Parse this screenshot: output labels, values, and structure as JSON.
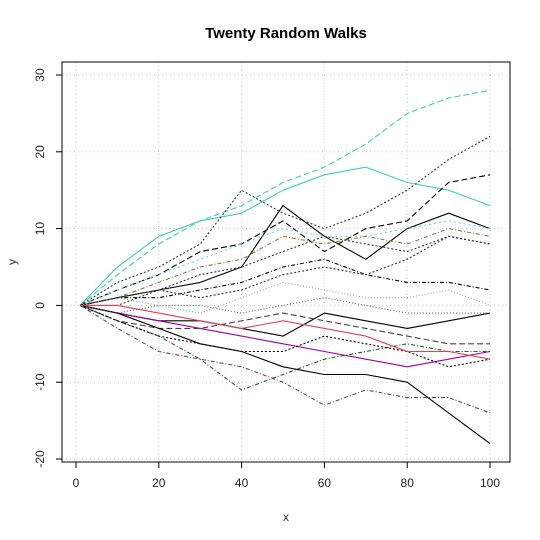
{
  "chart_data": {
    "type": "line",
    "title": "Twenty Random Walks",
    "xlabel": "x",
    "ylabel": "y",
    "xlim": [
      0,
      100
    ],
    "ylim": [
      -20,
      30
    ],
    "xticks": [
      "0",
      "20",
      "40",
      "60",
      "80",
      "100"
    ],
    "yticks": [
      "-20",
      "-10",
      "0",
      "10",
      "20",
      "30"
    ],
    "grid": true,
    "legend": "none",
    "x": [
      1,
      10,
      20,
      30,
      40,
      50,
      60,
      70,
      80,
      90,
      100
    ],
    "series": [
      {
        "color": "#40d0b0",
        "dash": "6 3",
        "values": [
          0,
          4,
          8,
          11,
          13,
          16,
          18,
          21,
          25,
          27,
          28
        ]
      },
      {
        "color": "#40d0b0",
        "dash": "",
        "values": [
          0,
          5,
          9,
          11,
          12,
          15,
          17,
          18,
          16,
          15,
          13
        ]
      },
      {
        "color": "#333333",
        "dash": "2 2",
        "values": [
          0,
          3,
          5,
          8,
          15,
          12,
          10,
          12,
          15,
          19,
          22
        ]
      },
      {
        "color": "#000000",
        "dash": "6 3",
        "values": [
          0,
          2,
          4,
          7,
          8,
          11,
          7,
          10,
          11,
          16,
          17
        ]
      },
      {
        "color": "#000000",
        "dash": "",
        "values": [
          0,
          1,
          2,
          3,
          5,
          13,
          9,
          6,
          10,
          12,
          10
        ]
      },
      {
        "color": "#60e0c0",
        "dash": "2 3",
        "values": [
          0,
          2,
          4,
          6,
          8,
          10,
          9,
          9,
          10,
          11,
          10
        ]
      },
      {
        "color": "#808040",
        "dash": "4 2 1 2",
        "values": [
          0,
          1,
          3,
          5,
          6,
          9,
          8,
          9,
          8,
          10,
          9
        ]
      },
      {
        "color": "#204020",
        "dash": "2 2",
        "values": [
          0,
          0,
          2,
          4,
          5,
          7,
          9,
          8,
          7,
          9,
          8
        ]
      },
      {
        "color": "#000000",
        "dash": "4 2 1 2",
        "values": [
          0,
          1,
          1,
          2,
          3,
          5,
          6,
          4,
          3,
          3,
          2
        ]
      },
      {
        "color": "#a0a0a0",
        "dash": "1 2",
        "values": [
          0,
          1,
          0,
          -1,
          1,
          3,
          2,
          1,
          1,
          2,
          0
        ]
      },
      {
        "color": "#000000",
        "dash": "",
        "values": [
          0,
          -1,
          -2,
          -2,
          -3,
          -4,
          -1,
          -2,
          -3,
          -2,
          -1
        ]
      },
      {
        "color": "#a000a0",
        "dash": "",
        "values": [
          0,
          -1,
          -2,
          -3,
          -4,
          -5,
          -6,
          -7,
          -8,
          -7,
          -6
        ]
      },
      {
        "color": "#404040",
        "dash": "6 3",
        "values": [
          0,
          -2,
          -3,
          -3,
          -2,
          -1,
          -2,
          -3,
          -4,
          -5,
          -5
        ]
      },
      {
        "color": "#206020",
        "dash": "4 2 1 2",
        "values": [
          0,
          -2,
          -4,
          -7,
          -11,
          -9,
          -7,
          -6,
          -5,
          -6,
          -6
        ]
      },
      {
        "color": "#000000",
        "dash": "",
        "values": [
          0,
          -1,
          -3,
          -5,
          -6,
          -8,
          -9,
          -9,
          -10,
          -14,
          -18
        ]
      },
      {
        "color": "#505050",
        "dash": "4 2 1 2",
        "values": [
          0,
          -3,
          -6,
          -7,
          -8,
          -10,
          -13,
          -11,
          -12,
          -12,
          -14
        ]
      },
      {
        "color": "#000000",
        "dash": "2 2",
        "values": [
          0,
          -2,
          -4,
          -5,
          -6,
          -6,
          -4,
          -5,
          -6,
          -8,
          -7
        ]
      },
      {
        "color": "#e04060",
        "dash": "",
        "values": [
          0,
          0,
          -1,
          -2,
          -3,
          -2,
          -3,
          -4,
          -6,
          -6,
          -7
        ]
      },
      {
        "color": "#303030",
        "dash": "2 2",
        "values": [
          0,
          1,
          2,
          1,
          2,
          4,
          5,
          4,
          6,
          9,
          8
        ]
      },
      {
        "color": "#606060",
        "dash": "1 2",
        "values": [
          0,
          -1,
          0,
          0,
          -1,
          0,
          1,
          0,
          -1,
          -1,
          -1
        ]
      }
    ]
  }
}
